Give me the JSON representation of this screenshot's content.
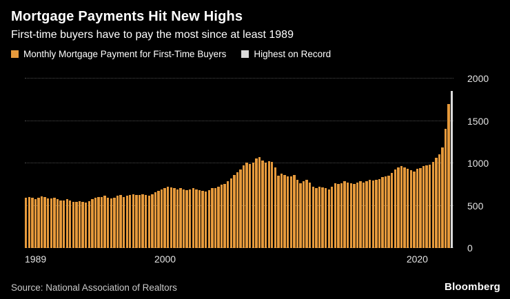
{
  "header": {
    "title": "Mortgage Payments Hit New Highs",
    "subtitle": "First-time buyers have to pay the most since at least 1989"
  },
  "legend": [
    {
      "label": "Monthly Mortgage Payment for First-Time Buyers",
      "color": "#E69A3C"
    },
    {
      "label": "Highest on Record",
      "color": "#DBDBDB"
    }
  ],
  "footer": {
    "source": "Source: National Association of Realtors",
    "brand": "Bloomberg"
  },
  "chart_data": {
    "type": "bar",
    "title": "Mortgage Payments Hit New Highs",
    "subtitle": "First-time buyers have to pay the most since at least 1989",
    "frequency": "quarterly",
    "x_start": "1989 Q1",
    "x_end": "2022 Q4",
    "ylim": [
      0,
      2000
    ],
    "y_ticks": [
      0,
      500,
      1000,
      1500,
      2000
    ],
    "y_axis_side": "right",
    "grid": "horizontal-dotted",
    "legend_position": "top",
    "x_ticks": [
      {
        "label": "1989",
        "index": 0
      },
      {
        "label": "2000",
        "index": 44
      },
      {
        "label": "2020",
        "index": 124
      }
    ],
    "series": [
      {
        "name": "Monthly Mortgage Payment for First-Time Buyers",
        "color": "#E69A3C",
        "values": [
          590,
          605,
          595,
          580,
          595,
          610,
          600,
          585,
          585,
          595,
          580,
          560,
          565,
          575,
          560,
          545,
          545,
          555,
          545,
          535,
          550,
          575,
          595,
          605,
          605,
          615,
          595,
          585,
          595,
          615,
          625,
          605,
          615,
          625,
          635,
          625,
          625,
          635,
          630,
          620,
          635,
          655,
          675,
          690,
          705,
          725,
          715,
          705,
          695,
          705,
          695,
          685,
          695,
          705,
          695,
          685,
          675,
          665,
          685,
          705,
          705,
          725,
          745,
          755,
          785,
          825,
          865,
          895,
          925,
          975,
          1005,
          995,
          1005,
          1055,
          1075,
          1035,
          1005,
          1025,
          1015,
          955,
          855,
          875,
          865,
          845,
          845,
          865,
          805,
          765,
          785,
          805,
          775,
          725,
          705,
          725,
          715,
          705,
          695,
          725,
          765,
          755,
          765,
          785,
          775,
          765,
          755,
          775,
          785,
          775,
          785,
          805,
          795,
          805,
          815,
          835,
          845,
          855,
          885,
          925,
          955,
          965,
          955,
          935,
          915,
          905,
          935,
          945,
          965,
          975,
          985,
          1015,
          1065,
          1105,
          1185,
          1405,
          1700
        ]
      }
    ],
    "highest_on_record": {
      "value": 1850,
      "color": "#DBDBDB",
      "position": "last"
    }
  }
}
